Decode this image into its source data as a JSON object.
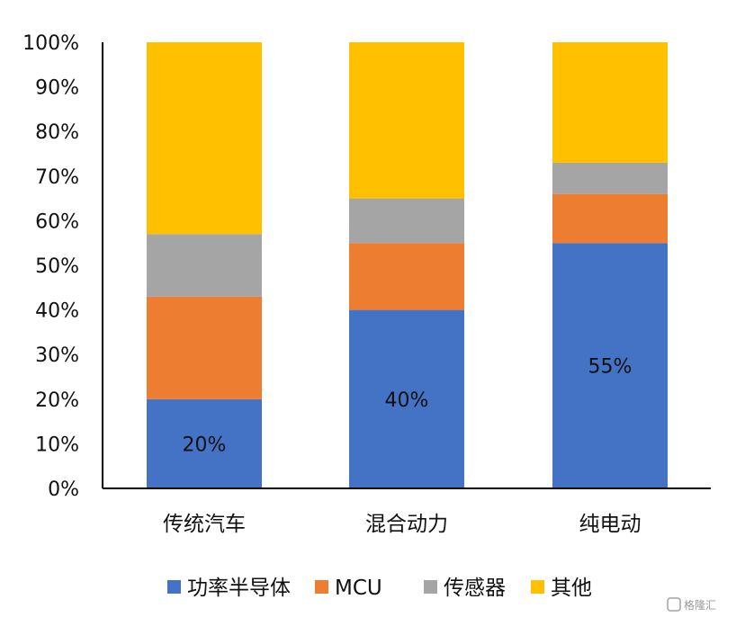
{
  "chart_data": {
    "type": "bar",
    "stacked": true,
    "categories": [
      "传统汽车",
      "混合动力",
      "纯电动"
    ],
    "series": [
      {
        "name": "功率半导体",
        "color": "#4472C4",
        "values": [
          20,
          40,
          55
        ]
      },
      {
        "name": "MCU",
        "color": "#ED7D31",
        "values": [
          23,
          15,
          11
        ]
      },
      {
        "name": "传感器",
        "color": "#A5A5A5",
        "values": [
          14,
          10,
          7
        ]
      },
      {
        "name": "其他",
        "color": "#FFC000",
        "values": [
          43,
          35,
          27
        ]
      }
    ],
    "data_labels": [
      {
        "series": "功率半导体",
        "category": "传统汽车",
        "text": "20%"
      },
      {
        "series": "功率半导体",
        "category": "混合动力",
        "text": "40%"
      },
      {
        "series": "功率半导体",
        "category": "纯电动",
        "text": "55%"
      }
    ],
    "y_ticks": [
      "0%",
      "10%",
      "20%",
      "30%",
      "40%",
      "50%",
      "60%",
      "70%",
      "80%",
      "90%",
      "100%"
    ],
    "ylim": [
      0,
      100
    ],
    "grid": false,
    "legend_position": "bottom"
  },
  "watermark": {
    "text": "格隆汇",
    "icon": "gelonghui-logo-icon"
  }
}
